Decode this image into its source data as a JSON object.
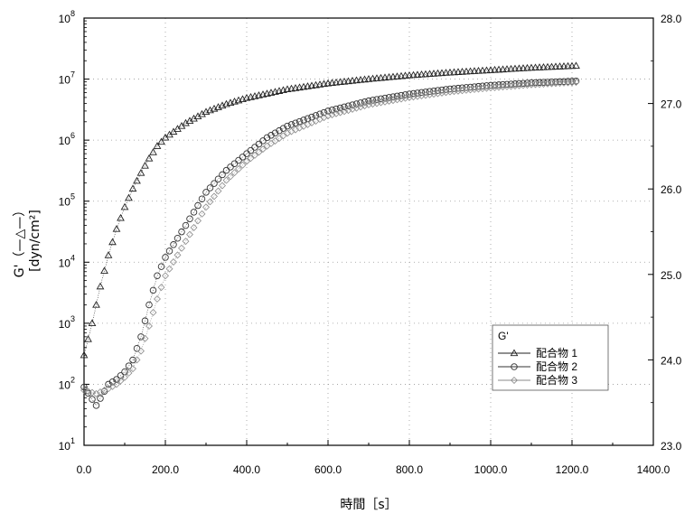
{
  "chart_data": {
    "type": "scatter",
    "x_axis": {
      "label": "時間［s］",
      "range": [
        0,
        1400
      ],
      "ticks": [
        0,
        200,
        400,
        600,
        800,
        1000,
        1200,
        1400
      ],
      "tick_labels": [
        "0.0",
        "200.0",
        "400.0",
        "600.0",
        "800.0",
        "1000.0",
        "1200.0",
        "1400.0"
      ]
    },
    "y_axis_left": {
      "label_line1": "G'（—△—）",
      "label_line2": "[dyn/cm²]",
      "scale": "log",
      "range": [
        10,
        100000000
      ],
      "tick_labels": [
        {
          "base": "10",
          "exp": "1"
        },
        {
          "base": "10",
          "exp": "2"
        },
        {
          "base": "10",
          "exp": "3"
        },
        {
          "base": "10",
          "exp": "4"
        },
        {
          "base": "10",
          "exp": "5"
        },
        {
          "base": "10",
          "exp": "6"
        },
        {
          "base": "10",
          "exp": "7"
        },
        {
          "base": "10",
          "exp": "8"
        }
      ]
    },
    "y_axis_right": {
      "range": [
        23.0,
        28.0
      ],
      "ticks": [
        23.0,
        24.0,
        25.0,
        26.0,
        27.0,
        28.0
      ],
      "tick_labels": [
        "23.0",
        "24.0",
        "25.0",
        "26.0",
        "27.0",
        "28.0"
      ]
    },
    "grid": true,
    "legend": {
      "title": "G'",
      "placement": "middle-right"
    },
    "series": [
      {
        "name": "配合物 1",
        "marker": "triangle",
        "x_end": 1210,
        "x": [
          0,
          20,
          40,
          60,
          80,
          100,
          120,
          140,
          160,
          180,
          200,
          250,
          300,
          350,
          400,
          500,
          600,
          700,
          800,
          900,
          1000,
          1100,
          1210
        ],
        "y": [
          300,
          1000,
          4000,
          13000,
          35000,
          80000,
          160000,
          290000,
          500000,
          800000,
          1100000,
          1900000,
          2900000,
          3900000,
          4900000,
          6800000,
          8500000,
          10000000,
          11500000,
          12800000,
          14000000,
          15300000,
          16500000
        ]
      },
      {
        "name": "配合物 2",
        "marker": "circle",
        "x_end": 1210,
        "x": [
          0,
          30,
          60,
          80,
          100,
          120,
          140,
          160,
          180,
          200,
          250,
          300,
          350,
          400,
          450,
          500,
          600,
          700,
          800,
          900,
          1000,
          1100,
          1210
        ],
        "y": [
          90,
          45,
          100,
          120,
          160,
          250,
          600,
          2000,
          6000,
          12000,
          40000,
          140000,
          320000,
          600000,
          1100000,
          1700000,
          3000000,
          4400000,
          5700000,
          6900000,
          7900000,
          8700000,
          9300000
        ]
      },
      {
        "name": "配合物 3",
        "marker": "diamond",
        "x_end": 1210,
        "x": [
          0,
          30,
          60,
          80,
          100,
          120,
          140,
          160,
          180,
          200,
          250,
          300,
          350,
          400,
          450,
          500,
          600,
          700,
          800,
          900,
          1000,
          1100,
          1210
        ],
        "y": [
          80,
          70,
          85,
          100,
          130,
          180,
          350,
          900,
          2500,
          6000,
          22000,
          80000,
          220000,
          450000,
          800000,
          1300000,
          2500000,
          3800000,
          5000000,
          6200000,
          7200000,
          8100000,
          8900000
        ]
      }
    ]
  }
}
